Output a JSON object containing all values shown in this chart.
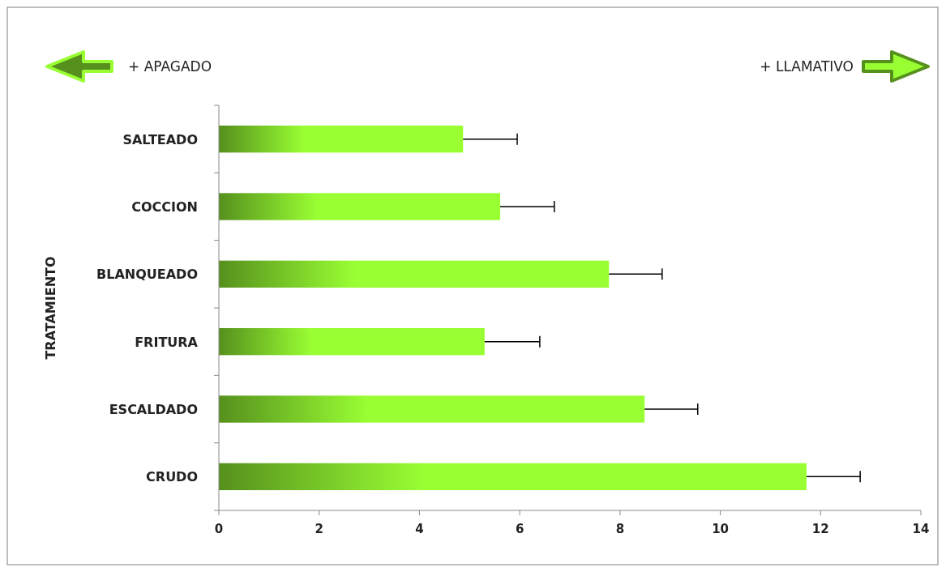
{
  "chart_data": {
    "type": "bar",
    "orientation": "horizontal",
    "ylabel": "TRATAMIENTO",
    "categories": [
      "SALTEADO",
      "COCCION",
      "BLANQUEADO",
      "FRITURA",
      "ESCALDADO",
      "CRUDO"
    ],
    "values": [
      4.87,
      5.61,
      7.78,
      5.3,
      8.49,
      11.72
    ],
    "errors": [
      [
        4.87,
        5.95
      ],
      [
        5.61,
        6.69
      ],
      [
        7.78,
        8.84
      ],
      [
        5.3,
        6.4
      ],
      [
        8.49,
        9.55
      ],
      [
        11.72,
        12.79
      ]
    ],
    "color": "#99ff33",
    "xlim": [
      0,
      14
    ],
    "xticks": [
      0,
      2,
      4,
      6,
      8,
      10,
      12,
      14
    ],
    "annotations": [
      "+ APAGADO",
      "+ LLAMATIVO"
    ],
    "grid": false
  }
}
